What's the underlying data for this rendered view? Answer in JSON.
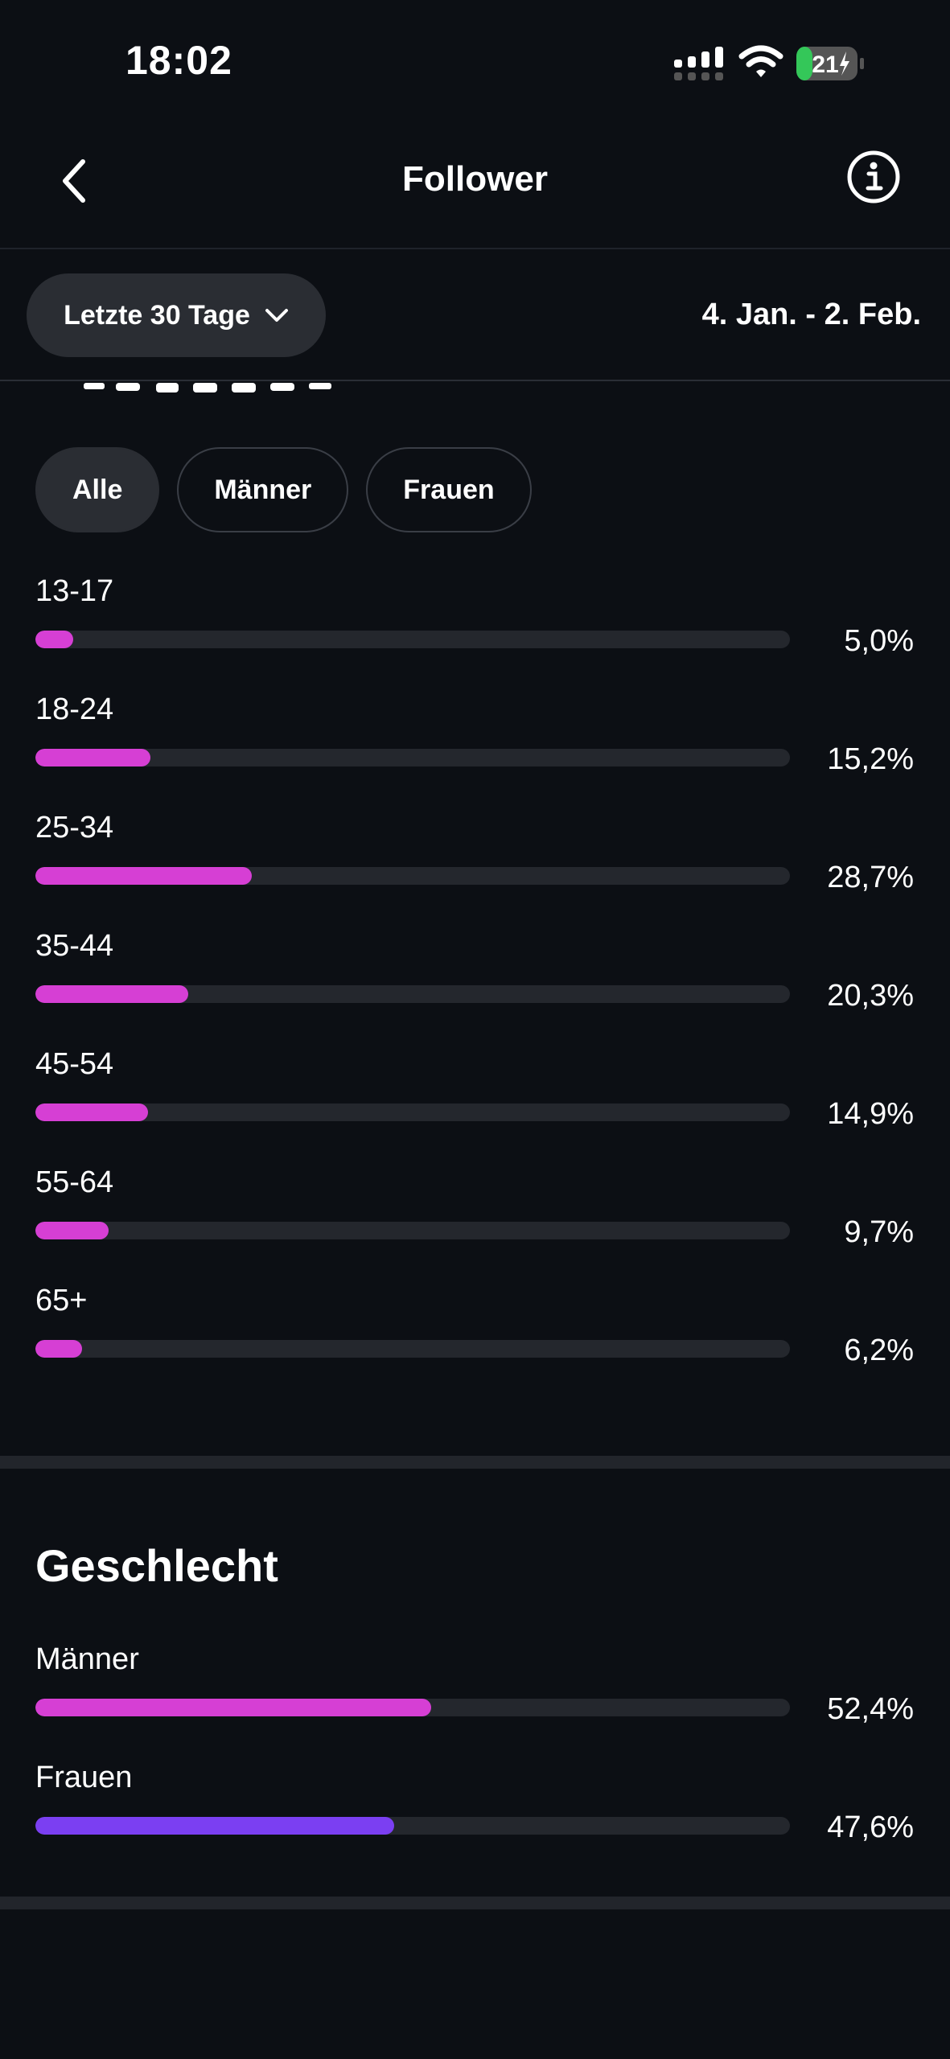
{
  "status_bar": {
    "time": "18:02",
    "battery_level": "21"
  },
  "nav": {
    "title": "Follower"
  },
  "filter": {
    "range_label": "Letzte 30 Tage",
    "date_range": "4. Jan. - 2. Feb."
  },
  "colors": {
    "accent_pink": "#d63fd4",
    "accent_purple": "#7b3ff2",
    "track": "#24272d"
  },
  "age": {
    "tabs": [
      {
        "label": "Alle",
        "active": true
      },
      {
        "label": "Männer",
        "active": false
      },
      {
        "label": "Frauen",
        "active": false
      }
    ],
    "groups": [
      {
        "label": "13-17",
        "value": "5,0%",
        "fraction": 0.05
      },
      {
        "label": "18-24",
        "value": "15,2%",
        "fraction": 0.152
      },
      {
        "label": "25-34",
        "value": "28,7%",
        "fraction": 0.287
      },
      {
        "label": "35-44",
        "value": "20,3%",
        "fraction": 0.203
      },
      {
        "label": "45-54",
        "value": "14,9%",
        "fraction": 0.149
      },
      {
        "label": "55-64",
        "value": "9,7%",
        "fraction": 0.097
      },
      {
        "label": "65+",
        "value": "6,2%",
        "fraction": 0.062
      }
    ]
  },
  "gender": {
    "title": "Geschlecht",
    "groups": [
      {
        "label": "Männer",
        "value": "52,4%",
        "fraction": 0.524,
        "color": "#d63fd4"
      },
      {
        "label": "Frauen",
        "value": "47,6%",
        "fraction": 0.476,
        "color": "#7b3ff2"
      }
    ]
  }
}
